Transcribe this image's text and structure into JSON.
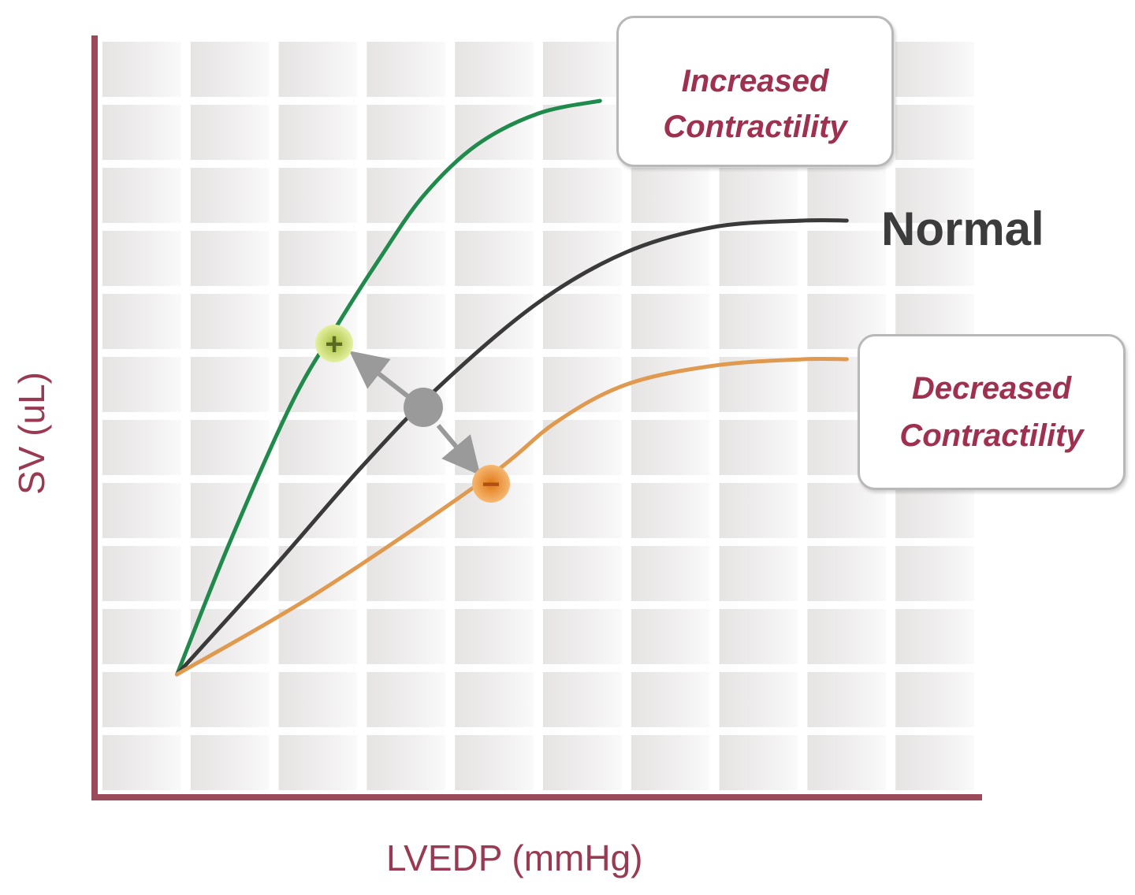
{
  "chart_data": {
    "type": "line",
    "title": "",
    "xlabel": "LVEDP (mmHg)",
    "ylabel": "SV (uL)",
    "grid": true,
    "xlim": [
      0,
      10
    ],
    "ylim": [
      0,
      12
    ],
    "axis_color": "#9a4a5a",
    "series": [
      {
        "name": "Increased Contractility",
        "color": "#1f8a4c",
        "x": [
          0.9,
          1.5,
          2.2,
          2.7,
          3.2,
          3.7,
          4.3,
          5.0,
          5.7
        ],
        "y": [
          1.9,
          4.0,
          6.2,
          7.4,
          8.5,
          9.5,
          10.3,
          10.8,
          11.0
        ]
      },
      {
        "name": "Normal",
        "color": "#3a3a3a",
        "x": [
          0.9,
          2.0,
          3.0,
          3.9,
          5.0,
          6.0,
          7.0,
          8.0,
          8.5
        ],
        "y": [
          1.9,
          3.6,
          5.2,
          6.5,
          7.8,
          8.6,
          9.0,
          9.1,
          9.1
        ]
      },
      {
        "name": "Decreased Contractility",
        "color": "#e09a50",
        "x": [
          0.9,
          2.5,
          4.4,
          5.2,
          6.0,
          7.0,
          8.0,
          8.5
        ],
        "y": [
          1.9,
          3.2,
          5.0,
          5.9,
          6.5,
          6.8,
          6.9,
          6.9
        ]
      }
    ],
    "annotations": [
      {
        "text": "+",
        "x": 2.7,
        "y": 7.4,
        "marker": "increased-point",
        "color": "#c8e070"
      },
      {
        "text": "",
        "x": 3.7,
        "y": 6.2,
        "marker": "normal-point",
        "color": "#9a9a9a"
      },
      {
        "text": "−",
        "x": 4.4,
        "y": 5.0,
        "marker": "decreased-point",
        "color": "#f0a050"
      }
    ],
    "legend_position": "inline-right"
  },
  "labels": {
    "increased_line1": "Increased",
    "increased_line2": "Contractility",
    "normal": "Normal",
    "decreased_line1": "Decreased",
    "decreased_line2": "Contractility",
    "xlabel": "LVEDP (mmHg)",
    "ylabel": "SV (uL)",
    "plus": "+",
    "minus": "−"
  }
}
